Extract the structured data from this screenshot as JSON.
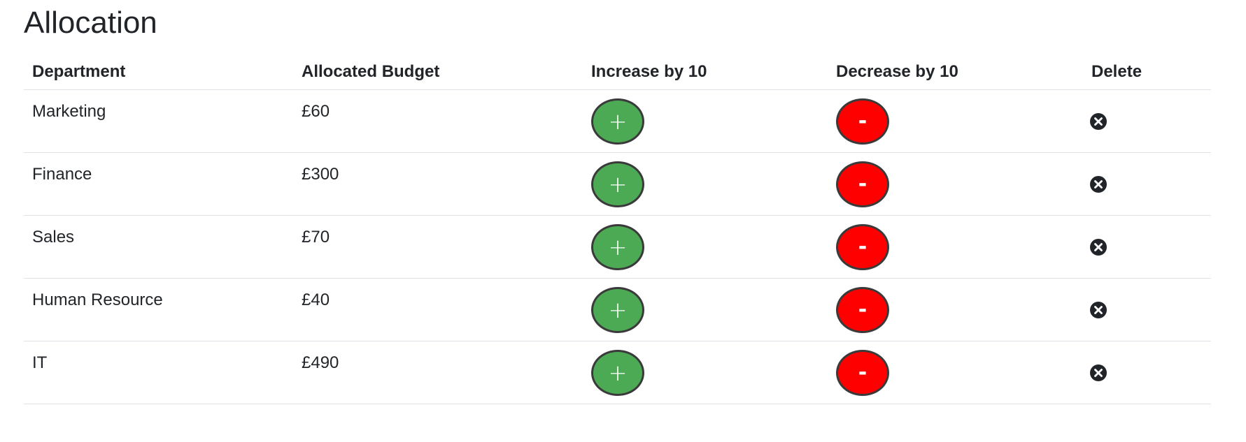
{
  "page": {
    "title": "Allocation"
  },
  "table": {
    "headers": {
      "department": "Department",
      "budget": "Allocated Budget",
      "increase": "Increase by 10",
      "decrease": "Decrease by 10",
      "delete": "Delete"
    },
    "rows": [
      {
        "department": "Marketing",
        "budget": "£60"
      },
      {
        "department": "Finance",
        "budget": "£300"
      },
      {
        "department": "Sales",
        "budget": "£70"
      },
      {
        "department": "Human Resource",
        "budget": "£40"
      },
      {
        "department": "IT",
        "budget": "£490"
      }
    ]
  },
  "buttons": {
    "increase_label": "+",
    "decrease_label": "-"
  },
  "icons": {
    "delete": "close-circle-icon"
  },
  "colors": {
    "increase": "#4caa55",
    "decrease": "#ff0000",
    "text": "#212529",
    "divider": "#dee2e6"
  }
}
